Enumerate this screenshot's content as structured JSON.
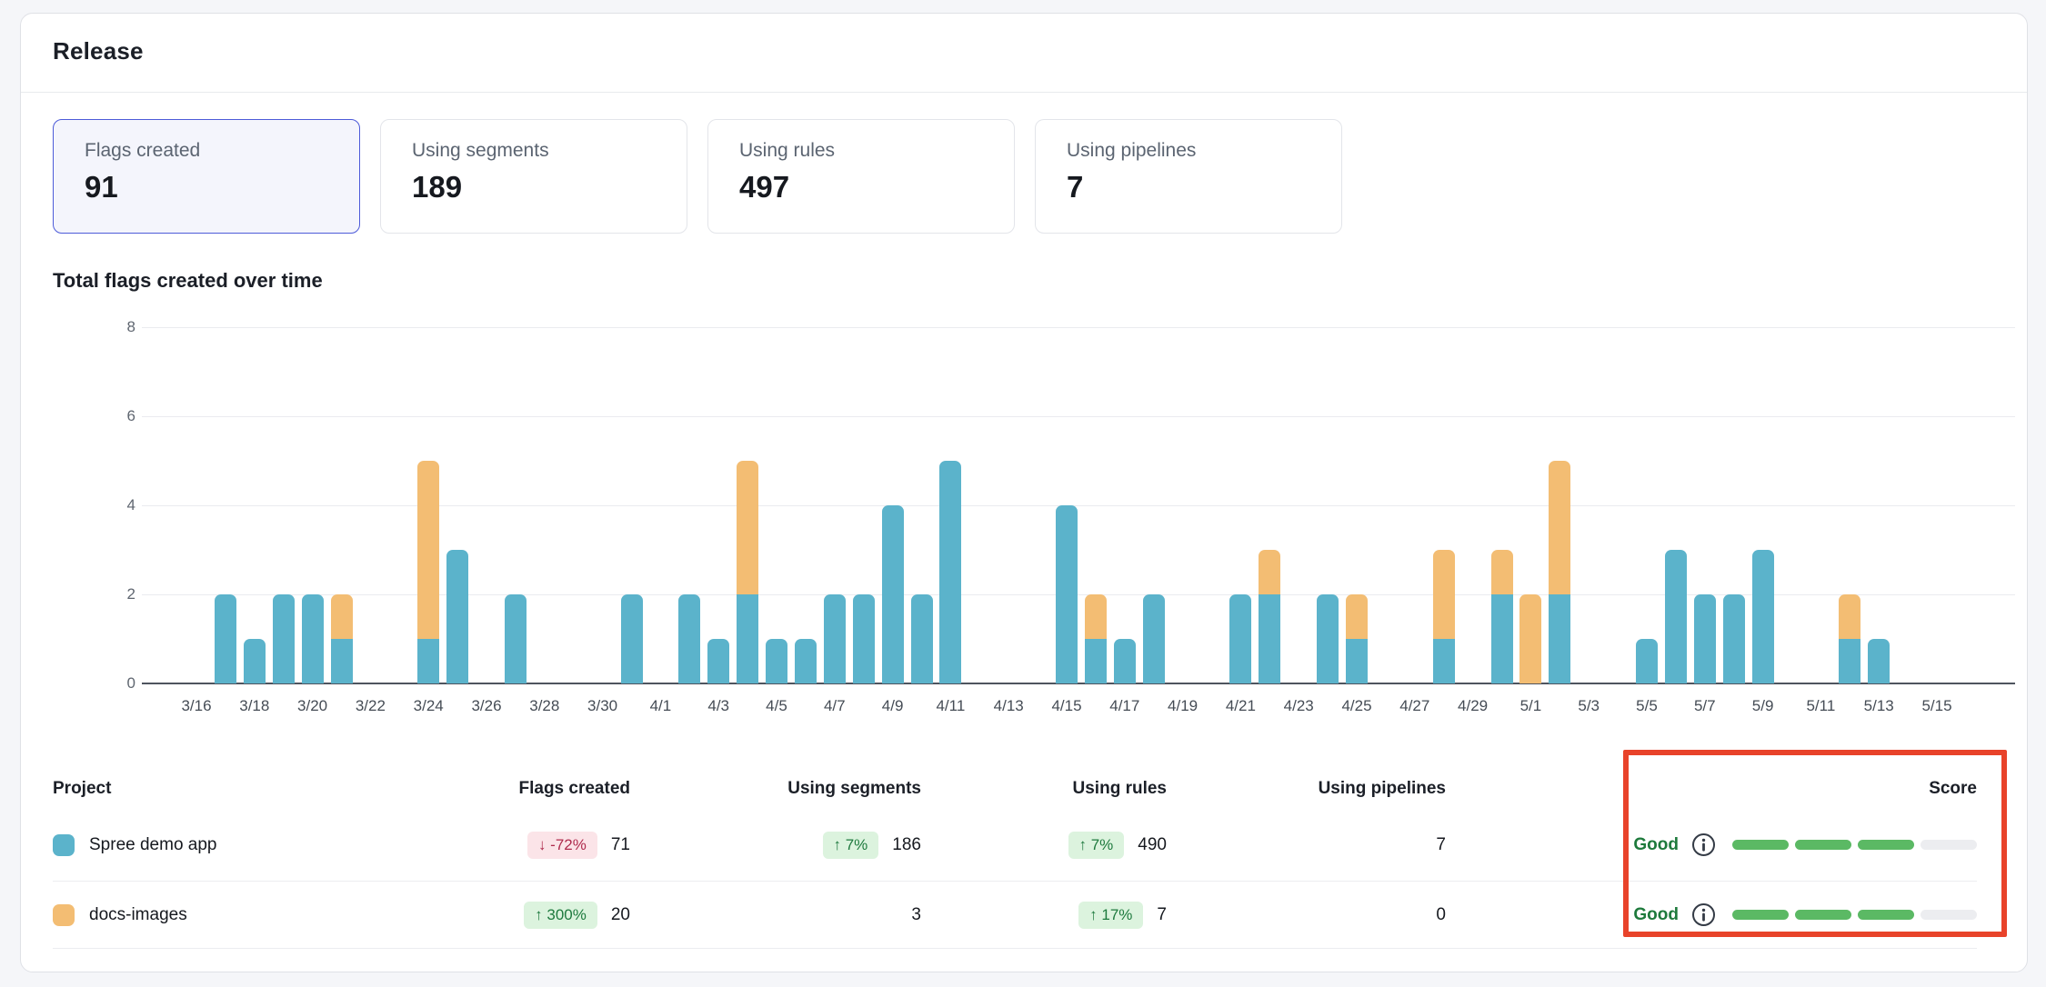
{
  "header": {
    "title": "Release"
  },
  "colors": {
    "series_spree": "#5BB3CB",
    "series_docs": "#F3BD73",
    "selected_card_border": "#4D5BD9",
    "badge_down_bg": "#FBE4E8",
    "badge_down_text": "#AF2B4D",
    "badge_up_bg": "#DCF3DE",
    "badge_up_text": "#1E7A3E",
    "score_good_text": "#1E7A3C",
    "score_bar_filled": "#5BB964",
    "score_bar_empty": "#ECEDF0",
    "highlight_rectangle": "#E8432A"
  },
  "metric_cards": [
    {
      "label": "Flags created",
      "value": "91",
      "selected": true
    },
    {
      "label": "Using segments",
      "value": "189",
      "selected": false
    },
    {
      "label": "Using rules",
      "value": "497",
      "selected": false
    },
    {
      "label": "Using pipelines",
      "value": "7",
      "selected": false
    }
  ],
  "chart_data": {
    "type": "bar",
    "stacked": true,
    "title": "Total flags created over time",
    "xlabel": "",
    "ylabel": "",
    "ylim": [
      0,
      8
    ],
    "yticks": [
      0,
      2,
      4,
      6,
      8
    ],
    "grid": true,
    "legend_position": "none",
    "x_tick_every": 2,
    "series": [
      {
        "name": "Spree demo app",
        "color": "#5BB3CB",
        "total": 71
      },
      {
        "name": "docs-images",
        "color": "#F3BD73",
        "total": 20
      }
    ],
    "dates": [
      "3/16",
      "3/17",
      "3/18",
      "3/19",
      "3/20",
      "3/21",
      "3/22",
      "3/23",
      "3/24",
      "3/25",
      "3/26",
      "3/27",
      "3/28",
      "3/29",
      "3/30",
      "3/31",
      "4/1",
      "4/2",
      "4/3",
      "4/4",
      "4/5",
      "4/6",
      "4/7",
      "4/8",
      "4/9",
      "4/10",
      "4/11",
      "4/12",
      "4/13",
      "4/14",
      "4/15",
      "4/16",
      "4/17",
      "4/18",
      "4/19",
      "4/20",
      "4/21",
      "4/22",
      "4/23",
      "4/24",
      "4/25",
      "4/26",
      "4/27",
      "4/28",
      "4/29",
      "4/30",
      "5/1",
      "5/2",
      "5/3",
      "5/4",
      "5/5",
      "5/6",
      "5/7",
      "5/8",
      "5/9",
      "5/10",
      "5/11",
      "5/12",
      "5/13",
      "5/14",
      "5/15"
    ],
    "spree": [
      0,
      2,
      1,
      2,
      2,
      1,
      0,
      0,
      1,
      3,
      0,
      2,
      0,
      0,
      0,
      2,
      0,
      2,
      1,
      2,
      1,
      1,
      2,
      2,
      4,
      2,
      5,
      0,
      0,
      0,
      4,
      1,
      1,
      2,
      0,
      0,
      2,
      2,
      0,
      2,
      1,
      0,
      0,
      1,
      0,
      2,
      0,
      2,
      0,
      0,
      1,
      3,
      2,
      2,
      3,
      0,
      0,
      1,
      1,
      0,
      0
    ],
    "docs": [
      0,
      0,
      0,
      0,
      0,
      1,
      0,
      0,
      4,
      0,
      0,
      0,
      0,
      0,
      0,
      0,
      0,
      0,
      0,
      3,
      0,
      0,
      0,
      0,
      0,
      0,
      0,
      0,
      0,
      0,
      0,
      1,
      0,
      0,
      0,
      0,
      0,
      1,
      0,
      0,
      1,
      0,
      0,
      2,
      0,
      1,
      2,
      3,
      0,
      0,
      0,
      0,
      0,
      0,
      0,
      0,
      0,
      1,
      0,
      0,
      0
    ]
  },
  "table": {
    "headers": [
      "Project",
      "Flags created",
      "Using segments",
      "Using rules",
      "Using pipelines",
      "Score"
    ],
    "rows": [
      {
        "project": "Spree demo app",
        "swatch_color": "#5BB3CB",
        "metrics": [
          {
            "badge": "↓ -72%",
            "trend": "down",
            "value": "71"
          },
          {
            "badge": "↑ 7%",
            "trend": "up",
            "value": "186"
          },
          {
            "badge": "↑ 7%",
            "trend": "up",
            "value": "490"
          },
          {
            "value": "7"
          }
        ],
        "score": {
          "label": "Good",
          "filled": 3,
          "segments": 4
        }
      },
      {
        "project": "docs-images",
        "swatch_color": "#F3BD73",
        "metrics": [
          {
            "badge": "↑ 300%",
            "trend": "up",
            "value": "20"
          },
          {
            "value": "3"
          },
          {
            "badge": "↑ 17%",
            "trend": "up",
            "value": "7"
          },
          {
            "value": "0"
          }
        ],
        "score": {
          "label": "Good",
          "filled": 3,
          "segments": 4
        }
      }
    ]
  },
  "annotation": {
    "type": "highlight-rectangle",
    "target": "score-column",
    "color": "#E8432A"
  }
}
